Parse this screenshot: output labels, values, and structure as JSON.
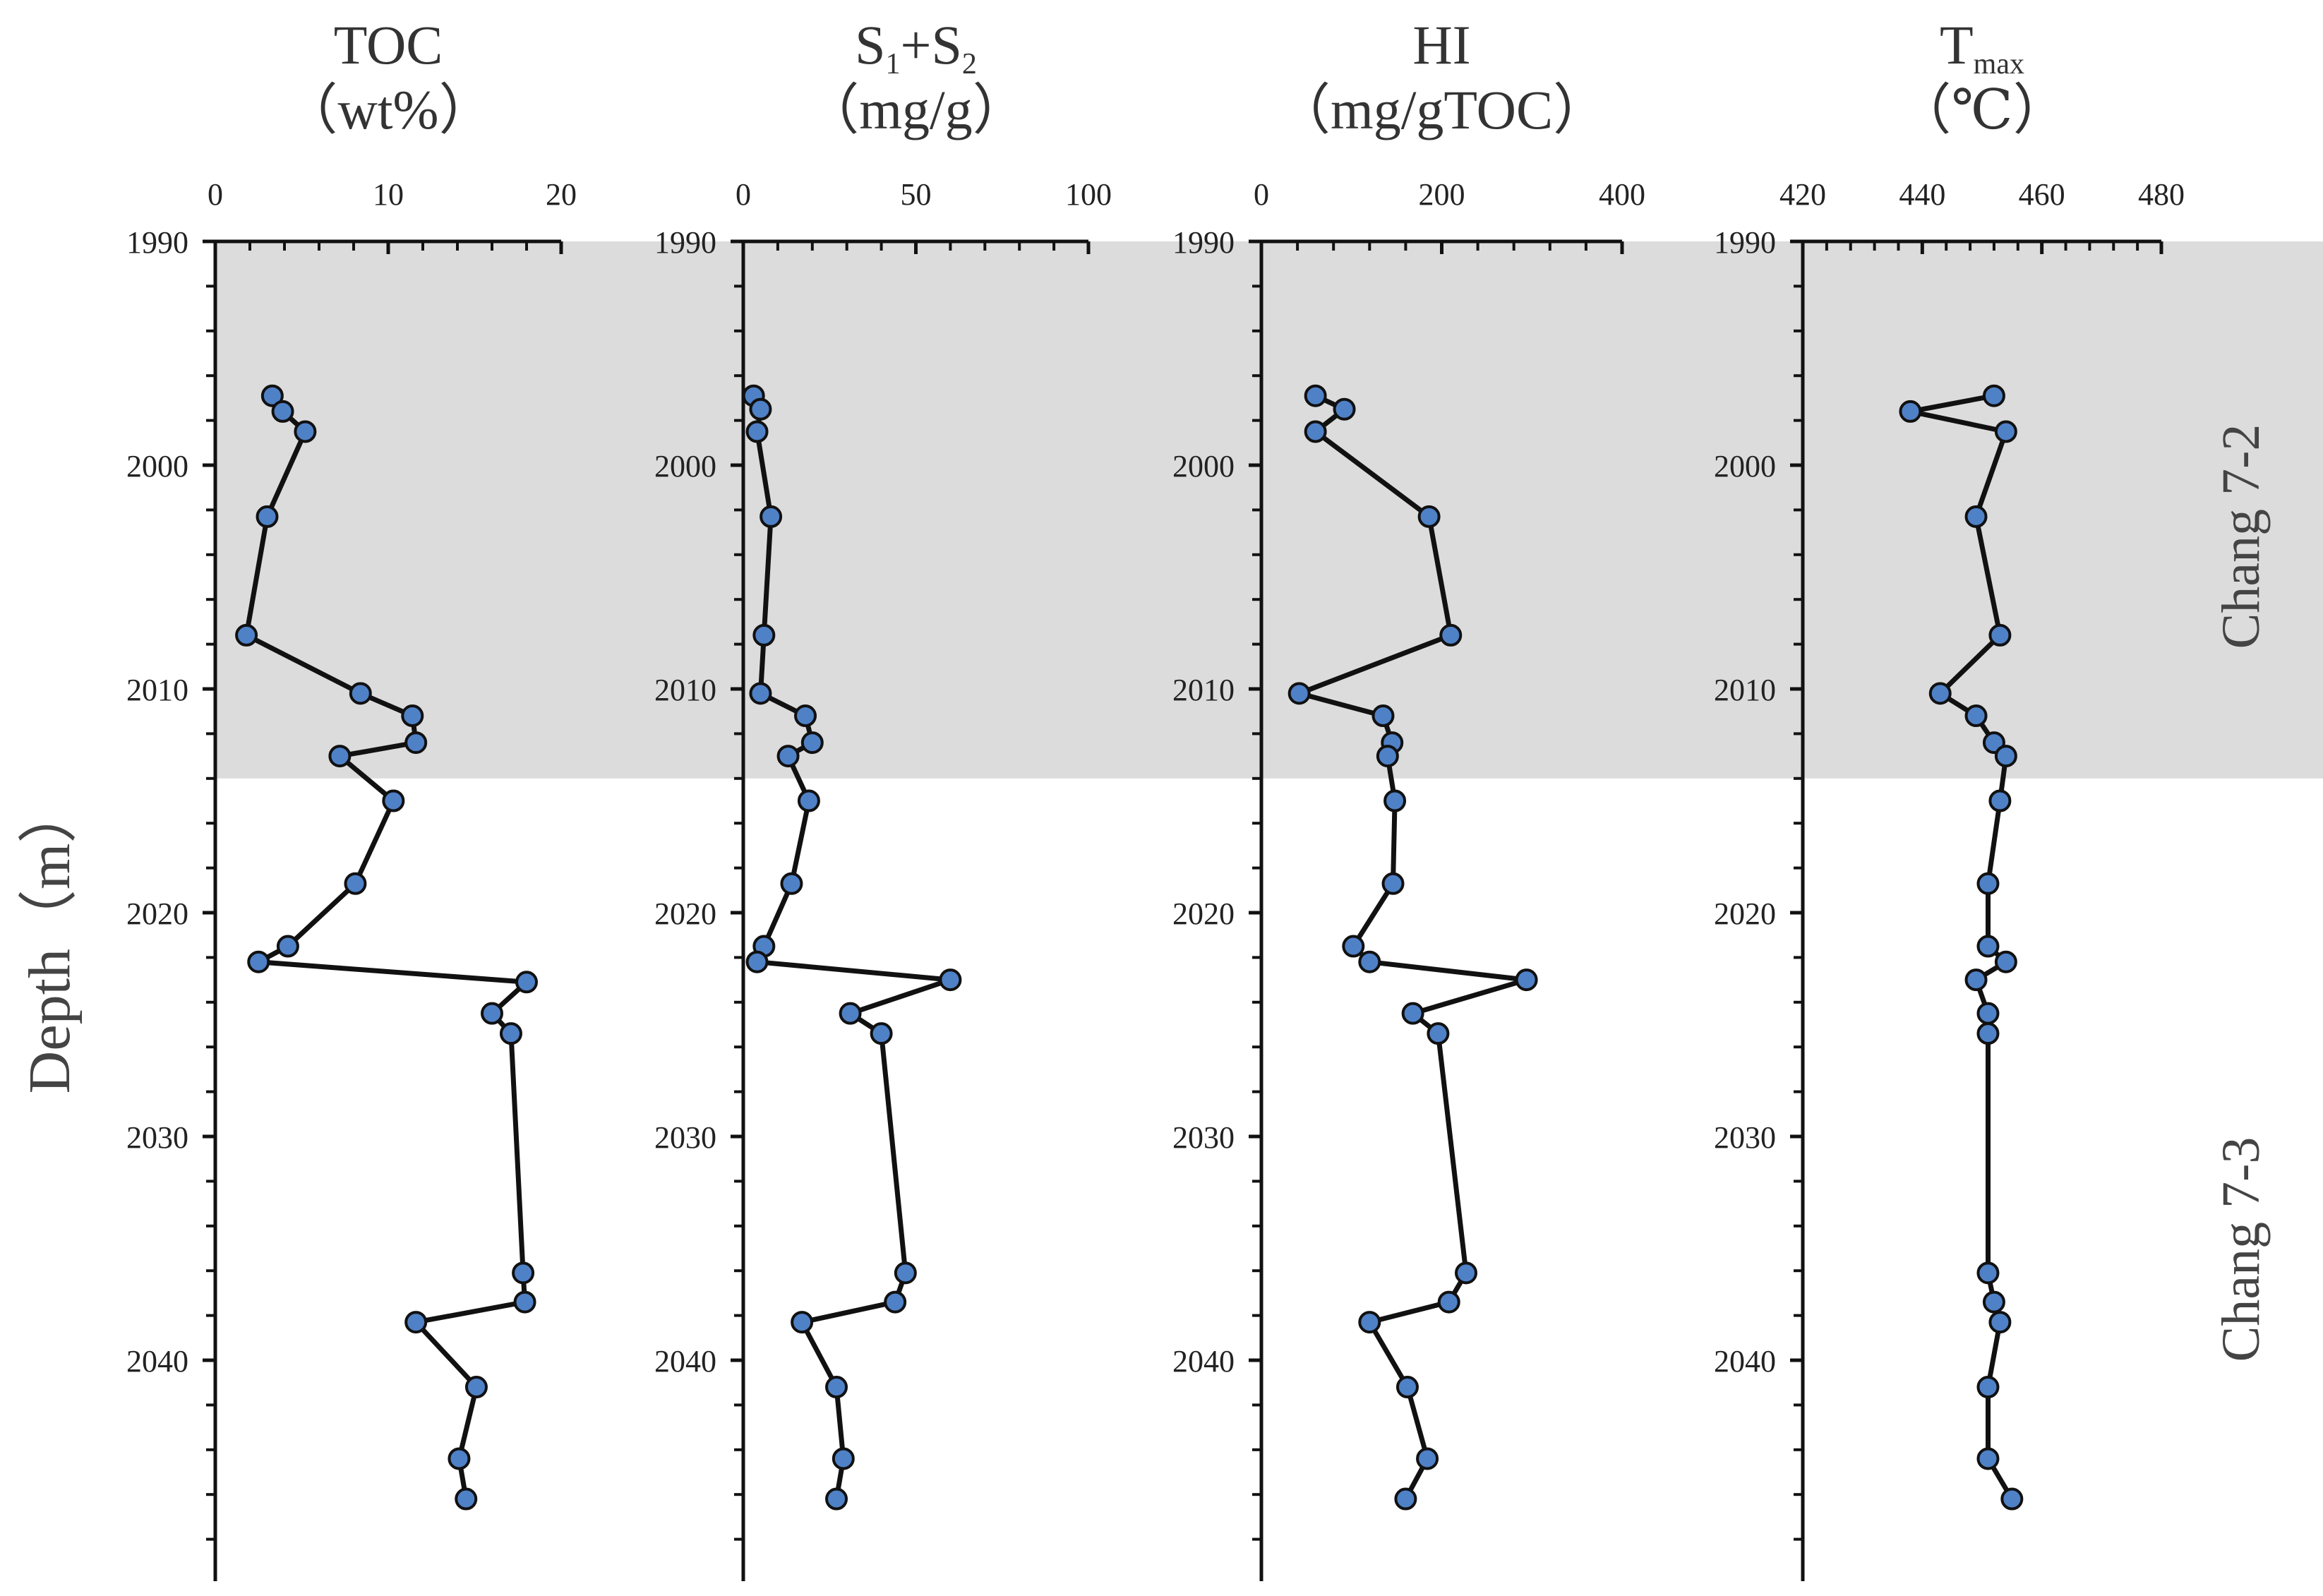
{
  "figure": {
    "y_axis_label": "Depth（m）",
    "shading_color": "#dcdcdc",
    "marker_color": "#4f81c7",
    "line_color": "#111111"
  },
  "zones": [
    {
      "label": "Chang 7-2",
      "top": 1990,
      "bottom": 2014,
      "shaded": true
    },
    {
      "label": "Chang 7-3",
      "top": 2014,
      "bottom": 2050,
      "shaded": false
    }
  ],
  "chart_data": [
    {
      "type": "line",
      "title_lines": [
        {
          "base": "TOC"
        },
        {
          "base": "（wt%）"
        }
      ],
      "xlim": [
        0,
        20
      ],
      "xticks": [
        0,
        10,
        20
      ],
      "minor_step": 2,
      "ylim": [
        1990,
        2050
      ],
      "yticks": [
        1990,
        2000,
        2010,
        2020,
        2030,
        2040
      ],
      "ylabel": "Depth（m）",
      "series": [
        {
          "points": [
            [
              3.3,
              1996.9
            ],
            [
              3.9,
              1997.6
            ],
            [
              5.2,
              1998.5
            ],
            [
              3.0,
              2002.3
            ],
            [
              1.8,
              2007.6
            ],
            [
              8.4,
              2010.2
            ],
            [
              11.4,
              2011.2
            ],
            [
              11.6,
              2012.4
            ],
            [
              7.2,
              2013.0
            ],
            [
              10.3,
              2015.0
            ],
            [
              8.1,
              2018.7
            ],
            [
              4.2,
              2021.5
            ],
            [
              2.5,
              2022.2
            ],
            [
              18.0,
              2023.1
            ],
            [
              16.0,
              2024.5
            ],
            [
              17.1,
              2025.4
            ],
            [
              17.8,
              2036.1
            ],
            [
              17.9,
              2037.4
            ],
            [
              11.6,
              2038.3
            ],
            [
              15.1,
              2041.2
            ],
            [
              14.1,
              2044.4
            ],
            [
              14.5,
              2046.2
            ]
          ]
        }
      ]
    },
    {
      "type": "line",
      "title_lines": [
        {
          "base": "S",
          "sub1": "1",
          "mid": "+S",
          "sub2": "2"
        },
        {
          "base": "（mg/g）"
        }
      ],
      "xlim": [
        0,
        100
      ],
      "xticks": [
        0,
        50,
        100
      ],
      "minor_step": 10,
      "ylim": [
        1990,
        2050
      ],
      "yticks": [
        1990,
        2000,
        2010,
        2020,
        2030,
        2040
      ],
      "series": [
        {
          "points": [
            [
              3,
              1996.9
            ],
            [
              5,
              1997.5
            ],
            [
              4,
              1998.5
            ],
            [
              8,
              2002.3
            ],
            [
              6,
              2007.6
            ],
            [
              5,
              2010.2
            ],
            [
              18,
              2011.2
            ],
            [
              20,
              2012.4
            ],
            [
              13,
              2013.0
            ],
            [
              19,
              2015.0
            ],
            [
              14,
              2018.7
            ],
            [
              6,
              2021.5
            ],
            [
              4,
              2022.2
            ],
            [
              60,
              2023.0
            ],
            [
              31,
              2024.5
            ],
            [
              40,
              2025.4
            ],
            [
              47,
              2036.1
            ],
            [
              44,
              2037.4
            ],
            [
              17,
              2038.3
            ],
            [
              27,
              2041.2
            ],
            [
              29,
              2044.4
            ],
            [
              27,
              2046.2
            ]
          ]
        }
      ]
    },
    {
      "type": "line",
      "title_lines": [
        {
          "base": "HI"
        },
        {
          "base": "（mg/gTOC）"
        }
      ],
      "xlim": [
        0,
        400
      ],
      "xticks": [
        0,
        200,
        400
      ],
      "minor_step": 40,
      "ylim": [
        1990,
        2050
      ],
      "yticks": [
        1990,
        2000,
        2010,
        2020,
        2030,
        2040
      ],
      "series": [
        {
          "points": [
            [
              60,
              1996.9
            ],
            [
              92,
              1997.5
            ],
            [
              60,
              1998.5
            ],
            [
              186,
              2002.3
            ],
            [
              210,
              2007.6
            ],
            [
              42,
              2010.2
            ],
            [
              135,
              2011.2
            ],
            [
              145,
              2012.4
            ],
            [
              140,
              2013.0
            ],
            [
              148,
              2015.0
            ],
            [
              146,
              2018.7
            ],
            [
              102,
              2021.5
            ],
            [
              120,
              2022.2
            ],
            [
              294,
              2023.0
            ],
            [
              168,
              2024.5
            ],
            [
              196,
              2025.4
            ],
            [
              227,
              2036.1
            ],
            [
              208,
              2037.4
            ],
            [
              120,
              2038.3
            ],
            [
              162,
              2041.2
            ],
            [
              184,
              2044.4
            ],
            [
              160,
              2046.2
            ]
          ]
        }
      ]
    },
    {
      "type": "line",
      "title_lines": [
        {
          "base": "T",
          "sub1": "max"
        },
        {
          "base": "（℃）"
        }
      ],
      "xlim": [
        420,
        480
      ],
      "xticks": [
        420,
        440,
        460,
        480
      ],
      "minor_step": 4,
      "ylim": [
        1990,
        2050
      ],
      "yticks": [
        1990,
        2000,
        2010,
        2020,
        2030,
        2040
      ],
      "series": [
        {
          "points": [
            [
              452,
              1996.9
            ],
            [
              438,
              1997.6
            ],
            [
              454,
              1998.5
            ],
            [
              449,
              2002.3
            ],
            [
              453,
              2007.6
            ],
            [
              443,
              2010.2
            ],
            [
              449,
              2011.2
            ],
            [
              452,
              2012.4
            ],
            [
              454,
              2013.0
            ],
            [
              453,
              2015.0
            ],
            [
              451,
              2018.7
            ],
            [
              451,
              2021.5
            ],
            [
              454,
              2022.2
            ],
            [
              449,
              2023.0
            ],
            [
              451,
              2024.5
            ],
            [
              451,
              2025.4
            ],
            [
              451,
              2036.1
            ],
            [
              452,
              2037.4
            ],
            [
              453,
              2038.3
            ],
            [
              451,
              2041.2
            ],
            [
              451,
              2044.4
            ],
            [
              455,
              2046.2
            ]
          ]
        }
      ]
    }
  ]
}
